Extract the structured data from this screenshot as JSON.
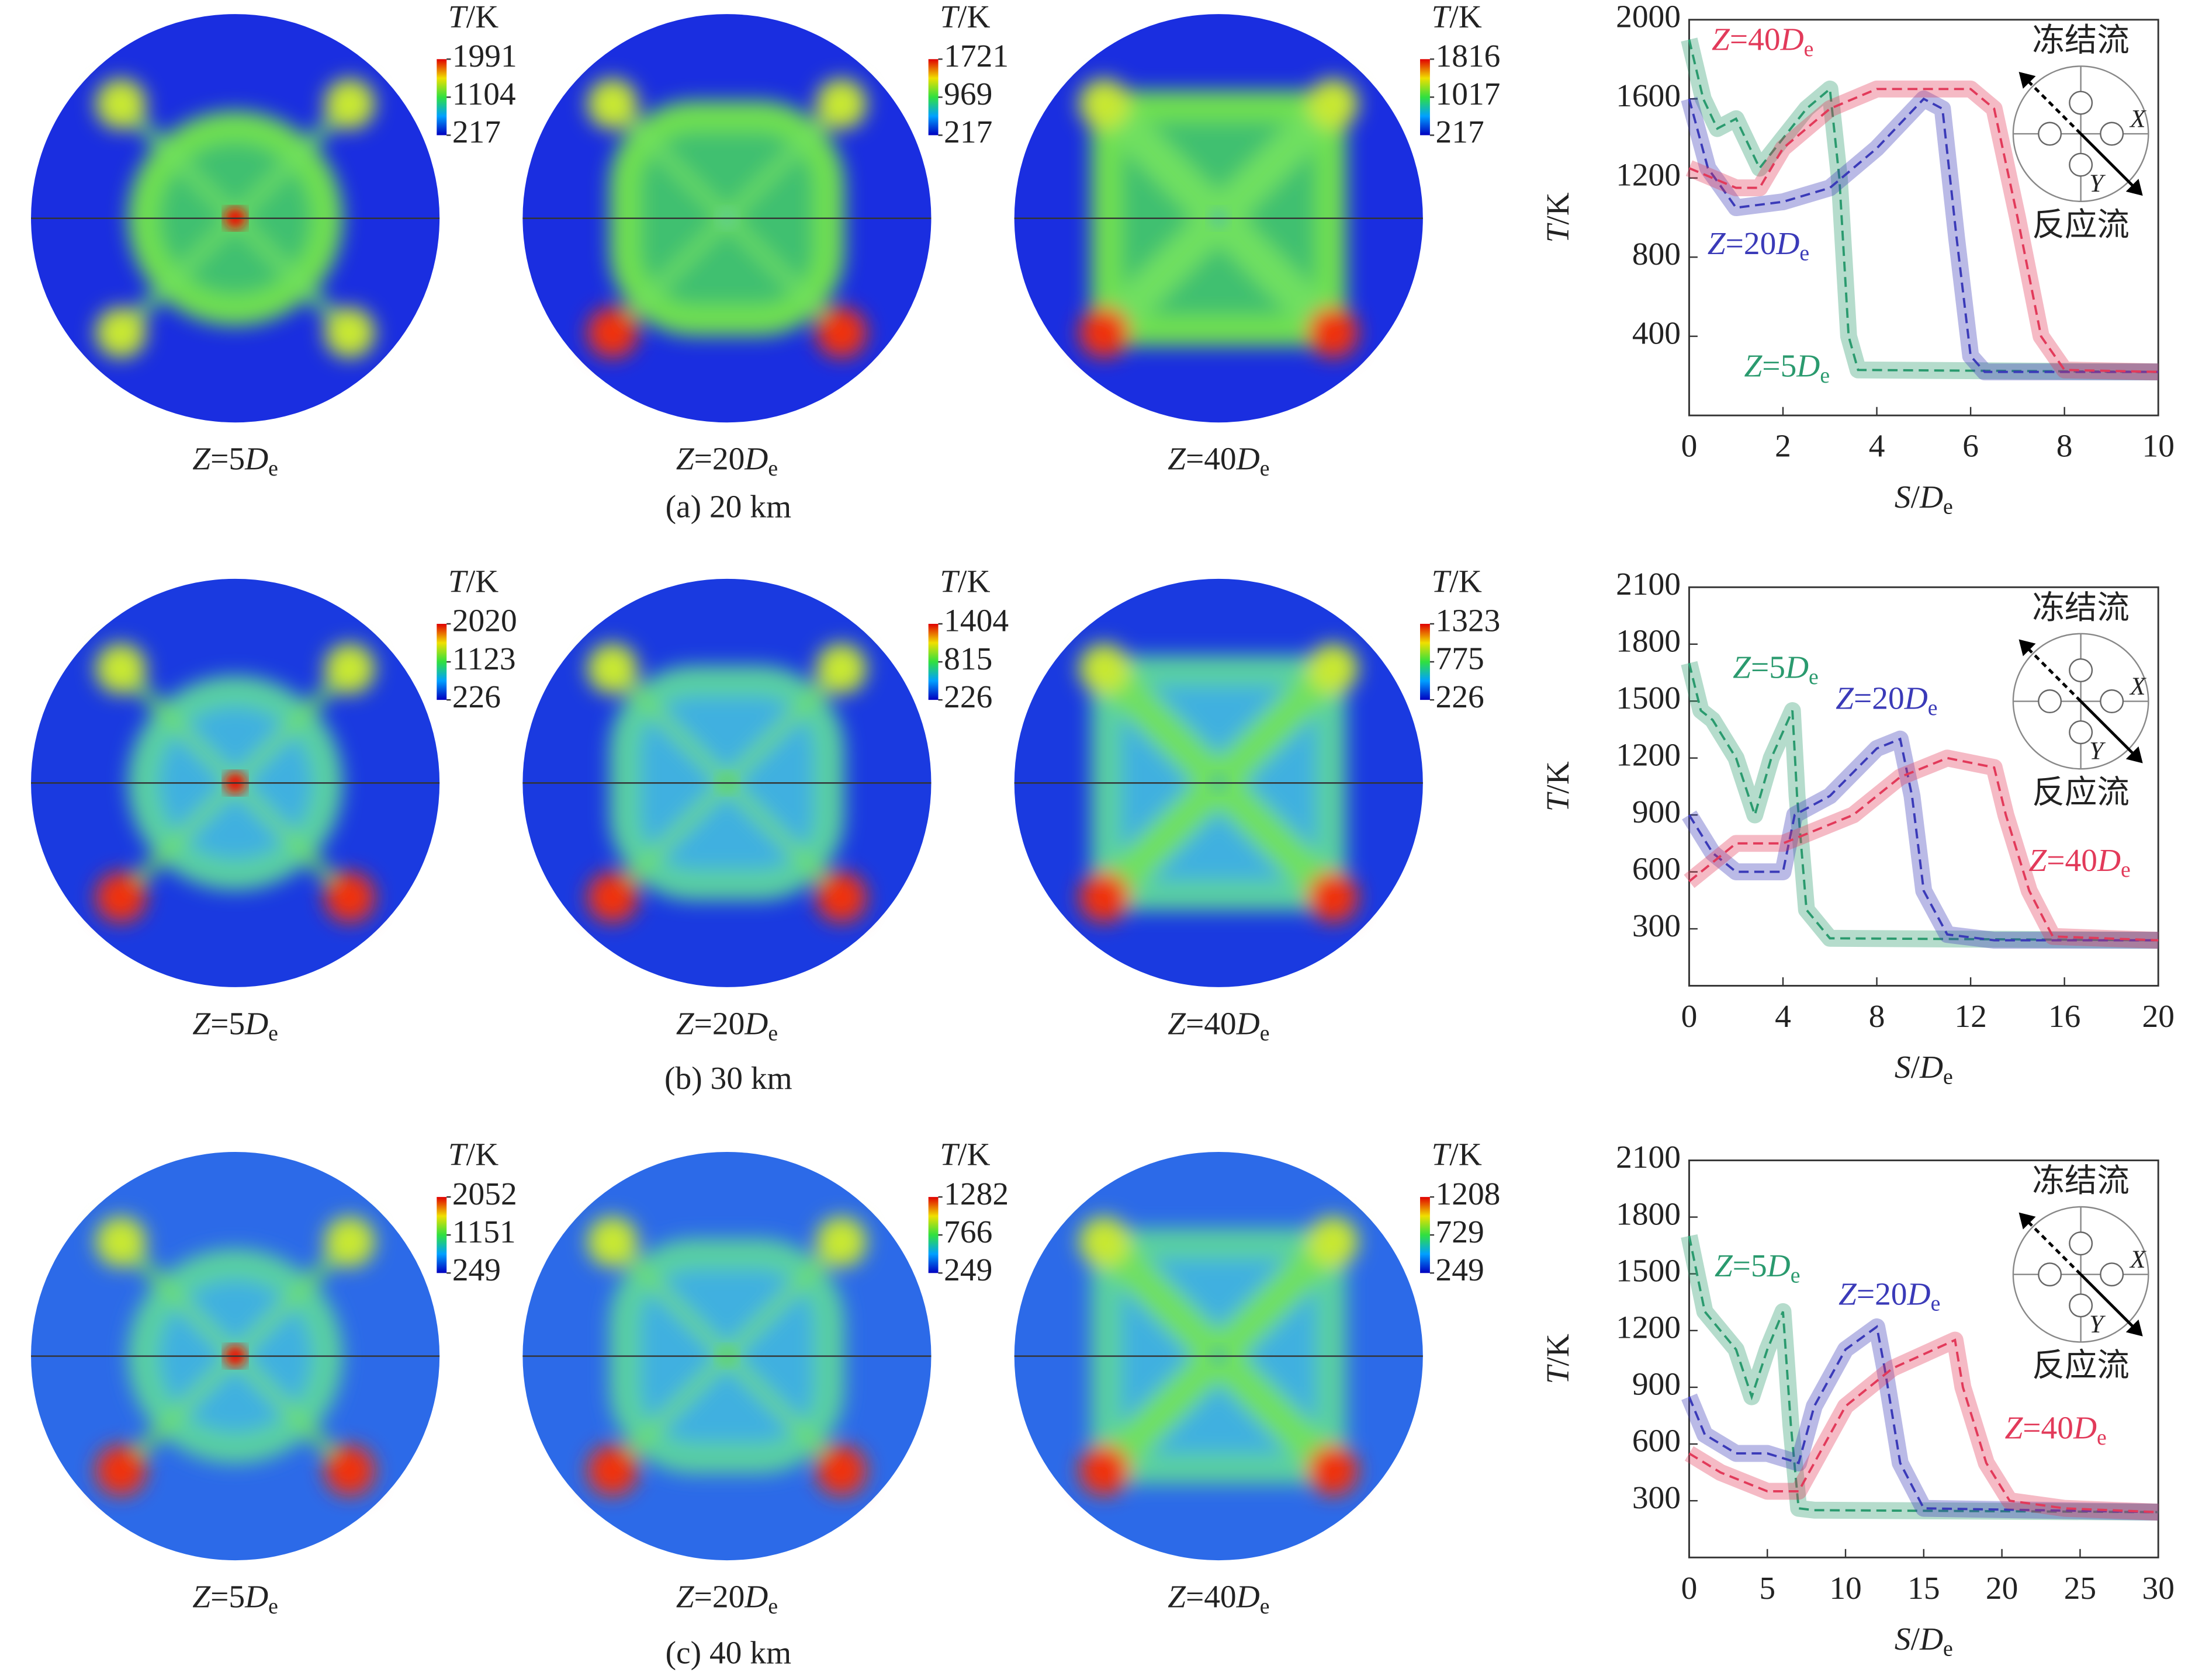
{
  "panels": [
    {
      "caption": "(a) 20 km",
      "maps": [
        {
          "label": "Z=5De",
          "colorbar_title": "T/K",
          "colorbar_ticks": [
            1991,
            1104,
            217
          ]
        },
        {
          "label": "Z=20De",
          "colorbar_title": "T/K",
          "colorbar_ticks": [
            1721,
            969,
            217
          ]
        },
        {
          "label": "Z=40De",
          "colorbar_title": "T/K",
          "colorbar_ticks": [
            1816,
            1017,
            217
          ]
        }
      ]
    },
    {
      "caption": "(b) 30 km",
      "maps": [
        {
          "label": "Z=5De",
          "colorbar_title": "T/K",
          "colorbar_ticks": [
            2020,
            1123,
            226
          ]
        },
        {
          "label": "Z=20De",
          "colorbar_title": "T/K",
          "colorbar_ticks": [
            1404,
            815,
            226
          ]
        },
        {
          "label": "Z=40De",
          "colorbar_title": "T/K",
          "colorbar_ticks": [
            1323,
            775,
            226
          ]
        }
      ]
    },
    {
      "caption": "(c) 40 km",
      "maps": [
        {
          "label": "Z=5De",
          "colorbar_title": "T/K",
          "colorbar_ticks": [
            2052,
            1151,
            249
          ]
        },
        {
          "label": "Z=20De",
          "colorbar_title": "T/K",
          "colorbar_ticks": [
            1282,
            766,
            249
          ]
        },
        {
          "label": "Z=40De",
          "colorbar_title": "T/K",
          "colorbar_ticks": [
            1208,
            729,
            249
          ]
        }
      ]
    }
  ],
  "chart_data": [
    {
      "type": "line",
      "xlabel": "S/De",
      "ylabel": "T/K",
      "xlim": [
        0,
        10
      ],
      "ylim": [
        0,
        2000
      ],
      "xticks": [
        0,
        2,
        4,
        6,
        8,
        10
      ],
      "yticks": [
        400,
        800,
        1200,
        1600,
        2000
      ],
      "inset": {
        "top": "冻结流",
        "bottom": "反应流",
        "x_axis": "X",
        "y_axis": "Y"
      },
      "series": [
        {
          "name": "Z=5De",
          "color": "#2a9a6e",
          "x": [
            0,
            0.3,
            0.6,
            1,
            1.5,
            2,
            2.5,
            3,
            3.2,
            3.4,
            3.6,
            10
          ],
          "values": [
            1900,
            1600,
            1450,
            1500,
            1250,
            1400,
            1550,
            1650,
            1200,
            400,
            230,
            220
          ]
        },
        {
          "name": "Z=20De",
          "color": "#3a3ab8",
          "x": [
            0,
            0.4,
            1,
            2,
            3,
            4,
            5,
            5.4,
            5.7,
            6,
            6.3,
            10
          ],
          "values": [
            1600,
            1250,
            1050,
            1080,
            1150,
            1350,
            1600,
            1550,
            900,
            300,
            220,
            220
          ]
        },
        {
          "name": "Z=40De",
          "color": "#e23a5a",
          "x": [
            0,
            1,
            1.5,
            2,
            3,
            4,
            5,
            6,
            6.5,
            7,
            7.5,
            8,
            10
          ],
          "values": [
            1250,
            1150,
            1150,
            1350,
            1550,
            1650,
            1650,
            1650,
            1550,
            1000,
            400,
            230,
            220
          ]
        }
      ]
    },
    {
      "type": "line",
      "xlabel": "S/De",
      "ylabel": "T/K",
      "xlim": [
        0,
        20
      ],
      "ylim": [
        0,
        2100
      ],
      "xticks": [
        0,
        4,
        8,
        12,
        16,
        20
      ],
      "yticks": [
        300,
        600,
        900,
        1200,
        1500,
        1800,
        2100
      ],
      "inset": {
        "top": "冻结流",
        "bottom": "反应流",
        "x_axis": "X",
        "y_axis": "Y"
      },
      "series": [
        {
          "name": "Z=5De",
          "color": "#2a9a6e",
          "x": [
            0,
            0.5,
            1,
            2,
            2.8,
            3.5,
            4.4,
            4.6,
            5,
            6,
            20
          ],
          "values": [
            1700,
            1450,
            1400,
            1200,
            900,
            1200,
            1450,
            1000,
            400,
            250,
            240
          ]
        },
        {
          "name": "Z=20De",
          "color": "#3a3ab8",
          "x": [
            0,
            1,
            2,
            4,
            4.5,
            6,
            8,
            9,
            9.5,
            10,
            11,
            13,
            20
          ],
          "values": [
            900,
            700,
            600,
            600,
            900,
            1000,
            1250,
            1300,
            1000,
            500,
            270,
            240,
            240
          ]
        },
        {
          "name": "Z=40De",
          "color": "#e23a5a",
          "x": [
            0,
            1,
            2,
            4,
            5,
            7,
            9,
            11,
            13,
            13.5,
            14.5,
            15.5,
            20
          ],
          "values": [
            550,
            650,
            750,
            750,
            800,
            900,
            1100,
            1200,
            1150,
            900,
            500,
            260,
            240
          ]
        }
      ]
    },
    {
      "type": "line",
      "xlabel": "S/De",
      "ylabel": "T/K",
      "xlim": [
        0,
        30
      ],
      "ylim": [
        0,
        2100
      ],
      "xticks": [
        0,
        5,
        10,
        15,
        20,
        25,
        30
      ],
      "yticks": [
        300,
        600,
        900,
        1200,
        1500,
        1800,
        2100
      ],
      "inset": {
        "top": "冻结流",
        "bottom": "反应流",
        "x_axis": "X",
        "y_axis": "Y"
      },
      "series": [
        {
          "name": "Z=5De",
          "color": "#2a9a6e",
          "x": [
            0,
            1,
            3,
            4,
            5,
            6,
            6.5,
            7,
            8,
            30
          ],
          "values": [
            1700,
            1300,
            1100,
            850,
            1100,
            1300,
            700,
            260,
            250,
            240
          ]
        },
        {
          "name": "Z=20De",
          "color": "#3a3ab8",
          "x": [
            0,
            1,
            3,
            5,
            7,
            8,
            10,
            12,
            12.5,
            13.5,
            15,
            30
          ],
          "values": [
            850,
            650,
            550,
            550,
            500,
            800,
            1100,
            1220,
            1000,
            500,
            260,
            240
          ]
        },
        {
          "name": "Z=40De",
          "color": "#e23a5a",
          "x": [
            0,
            2,
            5,
            7,
            8,
            10,
            13,
            17,
            17.5,
            19,
            20.5,
            24,
            30
          ],
          "values": [
            550,
            450,
            350,
            350,
            500,
            800,
            1000,
            1150,
            900,
            500,
            300,
            260,
            240
          ]
        }
      ]
    }
  ]
}
